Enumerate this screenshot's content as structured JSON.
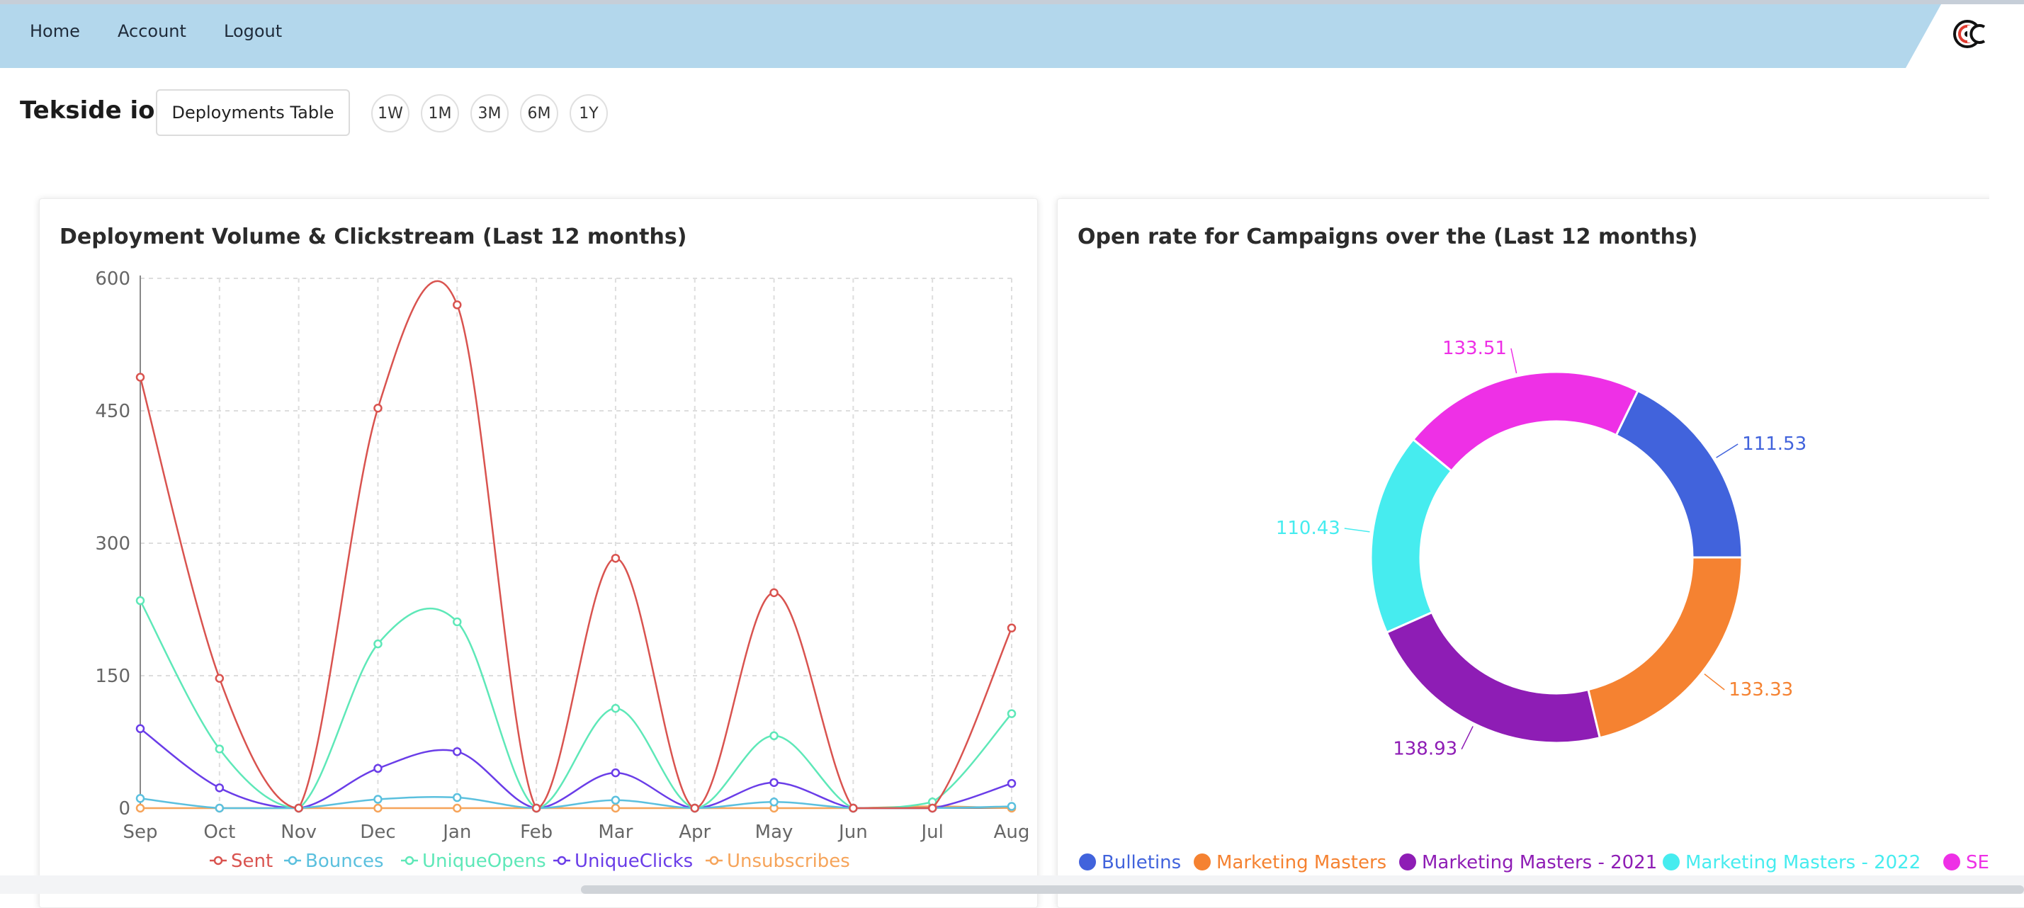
{
  "nav": {
    "home": "Home",
    "account": "Account",
    "logout": "Logout"
  },
  "header": {
    "title": "Tekside io",
    "table_button": "Deployments Table"
  },
  "ranges": [
    "1W",
    "1M",
    "3M",
    "6M",
    "1Y"
  ],
  "colors": {
    "topbar": "#b3d7ec",
    "sent": "#d9534f",
    "bounces": "#5bc0de",
    "uniqueOpens": "#5ee8b8",
    "uniqueClicks": "#6a3de8",
    "unsubscribes": "#f6a45a",
    "bulletins": "#4163dc",
    "mm": "#f58231",
    "mm2021": "#8e1db5",
    "mm2022": "#46ecef",
    "s": "#ee30e6"
  },
  "line_chart_title": "Deployment Volume & Clickstream (Last 12 months)",
  "donut_chart_title": "Open rate for Campaigns over the (Last 12 months)",
  "chart_data": [
    {
      "type": "line",
      "title": "Deployment Volume & Clickstream (Last 12 months)",
      "categories": [
        "Sep",
        "Oct",
        "Nov",
        "Dec",
        "Jan",
        "Feb",
        "Mar",
        "Apr",
        "May",
        "Jun",
        "Jul",
        "Aug"
      ],
      "ylim": [
        0,
        600
      ],
      "yticks": [
        0,
        150,
        300,
        450,
        600
      ],
      "grid": true,
      "legend": "bottom",
      "series": [
        {
          "name": "Sent",
          "color": "#d9534f",
          "values": [
            488,
            147,
            0,
            453,
            570,
            0,
            283,
            0,
            244,
            0,
            0,
            204
          ]
        },
        {
          "name": "Bounces",
          "color": "#5bc0de",
          "values": [
            11,
            0,
            0,
            10,
            12,
            0,
            9,
            0,
            7,
            0,
            0,
            2
          ]
        },
        {
          "name": "UniqueOpens",
          "color": "#5ee8b8",
          "values": [
            235,
            67,
            0,
            186,
            211,
            0,
            113,
            0,
            82,
            0,
            7,
            107
          ]
        },
        {
          "name": "UniqueClicks",
          "color": "#6a3de8",
          "values": [
            90,
            23,
            0,
            45,
            64,
            0,
            40,
            0,
            29,
            0,
            0,
            28
          ]
        },
        {
          "name": "Unsubscribes",
          "color": "#f6a45a",
          "values": [
            0,
            0,
            0,
            0,
            0,
            0,
            0,
            0,
            0,
            0,
            2,
            0
          ]
        }
      ]
    },
    {
      "type": "pie",
      "title": "Open rate for Campaigns over the (Last 12 months)",
      "legend": "bottom",
      "slices": [
        {
          "name": "Bulletins",
          "label": "111.53",
          "value": 111.53,
          "color": "#4163dc"
        },
        {
          "name": "SE",
          "label": "133.51",
          "value": 133.51,
          "color": "#ee30e6"
        },
        {
          "name": "Marketing Masters - 2022",
          "label": "110.43",
          "value": 110.43,
          "color": "#46ecef"
        },
        {
          "name": "Marketing Masters - 2021",
          "label": "138.93",
          "value": 138.93,
          "color": "#8e1db5"
        },
        {
          "name": "Marketing Masters",
          "label": "133.33",
          "value": 133.33,
          "color": "#f58231"
        }
      ],
      "legend_items": [
        "Bulletins",
        "Marketing Masters",
        "Marketing Masters - 2021",
        "Marketing Masters - 2022",
        "SE"
      ]
    }
  ]
}
